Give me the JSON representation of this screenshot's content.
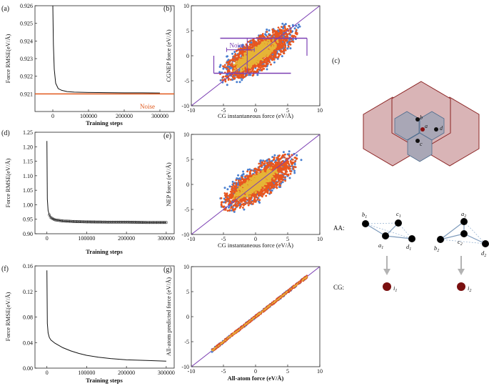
{
  "chart_data": [
    {
      "id": "a",
      "type": "line",
      "panel_label": "(a)",
      "xlabel": "Training steps",
      "ylabel": "Force RMSE(eV/Å)",
      "xlim": [
        -50000,
        340000
      ],
      "ylim": [
        0.92,
        0.926
      ],
      "xticks": [
        0,
        100000,
        200000,
        300000
      ],
      "yticks": [
        0.921,
        0.922,
        0.923,
        0.924,
        0.925,
        0.926
      ],
      "series": [
        {
          "name": "RMSE",
          "x": [
            0,
            1500,
            4000,
            8000,
            15000,
            25000,
            40000,
            60000,
            100000,
            150000,
            200000,
            250000,
            300000
          ],
          "y": [
            0.926,
            0.9238,
            0.9224,
            0.9216,
            0.9213,
            0.9212,
            0.92113,
            0.9211,
            0.92108,
            0.92107,
            0.92106,
            0.92106,
            0.92105
          ]
        }
      ],
      "reference_line": {
        "label": "Noise",
        "y": 0.921,
        "color": "#e05a1e"
      }
    },
    {
      "id": "b",
      "type": "scatter",
      "panel_label": "(b)",
      "xlabel": "CG instantaneous force (eV/Å)",
      "ylabel": "CGNEP force (eV/Å)",
      "xlim": [
        -10,
        10
      ],
      "ylim": [
        -10,
        10
      ],
      "xticks": [
        -10,
        -5,
        0,
        5,
        10
      ],
      "yticks": [
        -10,
        -5,
        0,
        5,
        10
      ],
      "diagonal": true,
      "clouds": [
        {
          "name": "outer",
          "color": "#4a7fd0",
          "center": [
            0.5,
            0.5
          ],
          "rx": 8.6,
          "ry": 3.3
        },
        {
          "name": "middle",
          "color": "#e8561e",
          "center": [
            0.5,
            0.4
          ],
          "rx": 7.8,
          "ry": 2.9
        },
        {
          "name": "core",
          "color": "#e6b436",
          "center": [
            0,
            0.1
          ],
          "rx": 4.6,
          "ry": 1.5
        }
      ],
      "annotation": {
        "label": "Noise",
        "color": "#7b3fb3",
        "horizontal_lines": [
          [
            -5.5,
            8,
            3.5
          ],
          [
            -6.5,
            5.5,
            -3.5
          ]
        ],
        "bracket_x": [
          -4.5,
          -0.2
        ],
        "bracket_y": 1.2
      }
    },
    {
      "id": "d",
      "type": "line",
      "panel_label": "(d)",
      "xlabel": "Training steps",
      "ylabel": "Force RMSE(eV/Å)",
      "xlim": [
        -30000,
        320000
      ],
      "ylim": [
        0.9,
        1.25
      ],
      "xticks": [
        0,
        100000,
        200000,
        300000
      ],
      "yticks": [
        0.9,
        0.95,
        1.0,
        1.05,
        1.1,
        1.15,
        1.2,
        1.25
      ],
      "series": [
        {
          "name": "RMSE",
          "x": [
            0,
            1000,
            3000,
            6000,
            10000,
            20000,
            40000,
            70000,
            100000,
            150000,
            200000,
            250000,
            300000
          ],
          "y": [
            1.22,
            1.02,
            0.98,
            0.965,
            0.955,
            0.948,
            0.944,
            0.942,
            0.941,
            0.94,
            0.94,
            0.939,
            0.939
          ]
        }
      ]
    },
    {
      "id": "e",
      "type": "scatter",
      "panel_label": "(e)",
      "xlabel": "CG instantaneous force (eV/Å)",
      "ylabel": "NEP force (eV/Å)",
      "xlim": [
        -10,
        10
      ],
      "ylim": [
        -10,
        10
      ],
      "xticks": [
        -10,
        -5,
        0,
        5,
        10
      ],
      "yticks": [
        -10,
        -5,
        0,
        5,
        10
      ],
      "diagonal": true,
      "clouds": [
        {
          "name": "outer",
          "color": "#4a7fd0",
          "center": [
            0.5,
            0.5
          ],
          "rx": 8.6,
          "ry": 3.3
        },
        {
          "name": "middle",
          "color": "#e8561e",
          "center": [
            0.5,
            0.4
          ],
          "rx": 7.8,
          "ry": 2.9
        },
        {
          "name": "core",
          "color": "#e6b436",
          "center": [
            0,
            0.1
          ],
          "rx": 4.6,
          "ry": 1.5
        }
      ]
    },
    {
      "id": "f",
      "type": "line",
      "panel_label": "(f)",
      "xlabel": "Training steps",
      "ylabel": "Force RMSE(eV/Å)",
      "xlim": [
        -30000,
        320000
      ],
      "ylim": [
        0,
        0.16
      ],
      "xticks": [
        0,
        100000,
        200000,
        300000
      ],
      "yticks": [
        0.0,
        0.04,
        0.08,
        0.12,
        0.16
      ],
      "series": [
        {
          "name": "RMSE",
          "x": [
            0,
            1000,
            3000,
            6000,
            10000,
            20000,
            40000,
            60000,
            80000,
            100000,
            130000,
            160000,
            200000,
            250000,
            300000
          ],
          "y": [
            0.153,
            0.07,
            0.055,
            0.048,
            0.044,
            0.039,
            0.032,
            0.027,
            0.023,
            0.02,
            0.017,
            0.015,
            0.013,
            0.012,
            0.011
          ]
        }
      ]
    },
    {
      "id": "g",
      "type": "scatter",
      "panel_label": "(g)",
      "xlabel": "All-atom force (eV/Å)",
      "ylabel": "All-atom predicted force (eV/Å)",
      "xlim": [
        -10,
        10
      ],
      "ylim": [
        -10,
        10
      ],
      "xticks": [
        -10,
        -5,
        0,
        5,
        10
      ],
      "yticks": [
        -10,
        -5,
        0,
        5,
        10
      ],
      "diagonal": true,
      "band": {
        "x_range": [
          -6.8,
          8
        ],
        "half_width": 0.25,
        "colors": [
          "#4a7fd0",
          "#d94b2b",
          "#e6b436"
        ]
      }
    }
  ],
  "diagram": {
    "panel_label": "(c)",
    "points": [
      "a",
      "b",
      "c",
      "d"
    ],
    "aa_label": "AA:",
    "cg_label": "CG:",
    "mol1": {
      "a": "a",
      "a_sub": "1",
      "b": "b",
      "b_sub": "1",
      "c": "c",
      "c_sub": "1",
      "d": "d",
      "d_sub": "1"
    },
    "mol2": {
      "a": "a",
      "a_sub": "2",
      "b": "b",
      "b_sub": "2",
      "c": "c",
      "c_sub": "2",
      "d": "d",
      "d_sub": "2"
    },
    "cg1": {
      "label": "i",
      "sub": "1"
    },
    "cg2": {
      "label": "i",
      "sub": "2"
    },
    "colors": {
      "hex_fill": "#d9b4b6",
      "hex_stroke": "#8b2323",
      "inner_fill": "#a9a7b6",
      "inner_stroke": "#4e6d8f",
      "bead": "#7a1010"
    }
  }
}
